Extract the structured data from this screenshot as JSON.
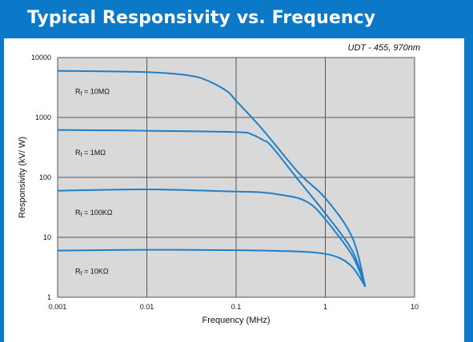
{
  "header": {
    "title": "Typical Responsivity vs. Frequency"
  },
  "colors": {
    "header_bg": "#0b78c8",
    "plot_bg": "#d9d9d9",
    "line": "#1f80c9",
    "grid": "#555555"
  },
  "chart_data": {
    "type": "line",
    "subtitle": "UDT - 455, 970nm",
    "xlabel": "Frequency (MHz)",
    "ylabel": "Responsivity (kV/ W)",
    "xscale": "log",
    "yscale": "log",
    "xlim": [
      0.001,
      10
    ],
    "ylim": [
      1,
      10000
    ],
    "grid": true,
    "x_ticks": [
      "0.001",
      "0.01",
      "0.1",
      "1",
      "10"
    ],
    "y_ticks": [
      "10000",
      "1000",
      "100",
      "10",
      "1"
    ],
    "series": [
      {
        "name": "Rf = 10MΩ",
        "label_base": "R",
        "label_sub": "f",
        "label_rest": " = 10MΩ",
        "points": [
          [
            0.001,
            6000
          ],
          [
            0.01,
            5700
          ],
          [
            0.03,
            5000
          ],
          [
            0.05,
            4000
          ],
          [
            0.08,
            2700
          ],
          [
            0.1,
            1900
          ],
          [
            0.2,
            620
          ],
          [
            0.5,
            120
          ],
          [
            1,
            45
          ],
          [
            2,
            10
          ],
          [
            2.8,
            1.5
          ]
        ]
      },
      {
        "name": "Rf = 1MΩ",
        "label_base": "R",
        "label_sub": "f",
        "label_rest": " = 1MΩ",
        "points": [
          [
            0.001,
            620
          ],
          [
            0.01,
            600
          ],
          [
            0.1,
            570
          ],
          [
            0.15,
            520
          ],
          [
            0.2,
            420
          ],
          [
            0.25,
            330
          ],
          [
            0.5,
            90
          ],
          [
            1,
            25
          ],
          [
            2,
            6
          ],
          [
            2.8,
            1.5
          ]
        ]
      },
      {
        "name": "Rf = 100KΩ",
        "label_base": "R",
        "label_sub": "f",
        "label_rest": " = 100KΩ",
        "points": [
          [
            0.001,
            60
          ],
          [
            0.01,
            63
          ],
          [
            0.1,
            58
          ],
          [
            0.2,
            56
          ],
          [
            0.35,
            50
          ],
          [
            0.5,
            45
          ],
          [
            0.7,
            35
          ],
          [
            1,
            20
          ],
          [
            2,
            5
          ],
          [
            2.8,
            1.5
          ]
        ]
      },
      {
        "name": "Rf = 10KΩ",
        "label_base": "R",
        "label_sub": "f",
        "label_rest": " = 10KΩ",
        "points": [
          [
            0.001,
            6
          ],
          [
            0.01,
            6.2
          ],
          [
            0.1,
            6.1
          ],
          [
            0.5,
            5.8
          ],
          [
            1,
            5.3
          ],
          [
            1.5,
            4.4
          ],
          [
            2,
            3.2
          ],
          [
            2.5,
            2
          ],
          [
            2.8,
            1.5
          ]
        ]
      }
    ]
  }
}
